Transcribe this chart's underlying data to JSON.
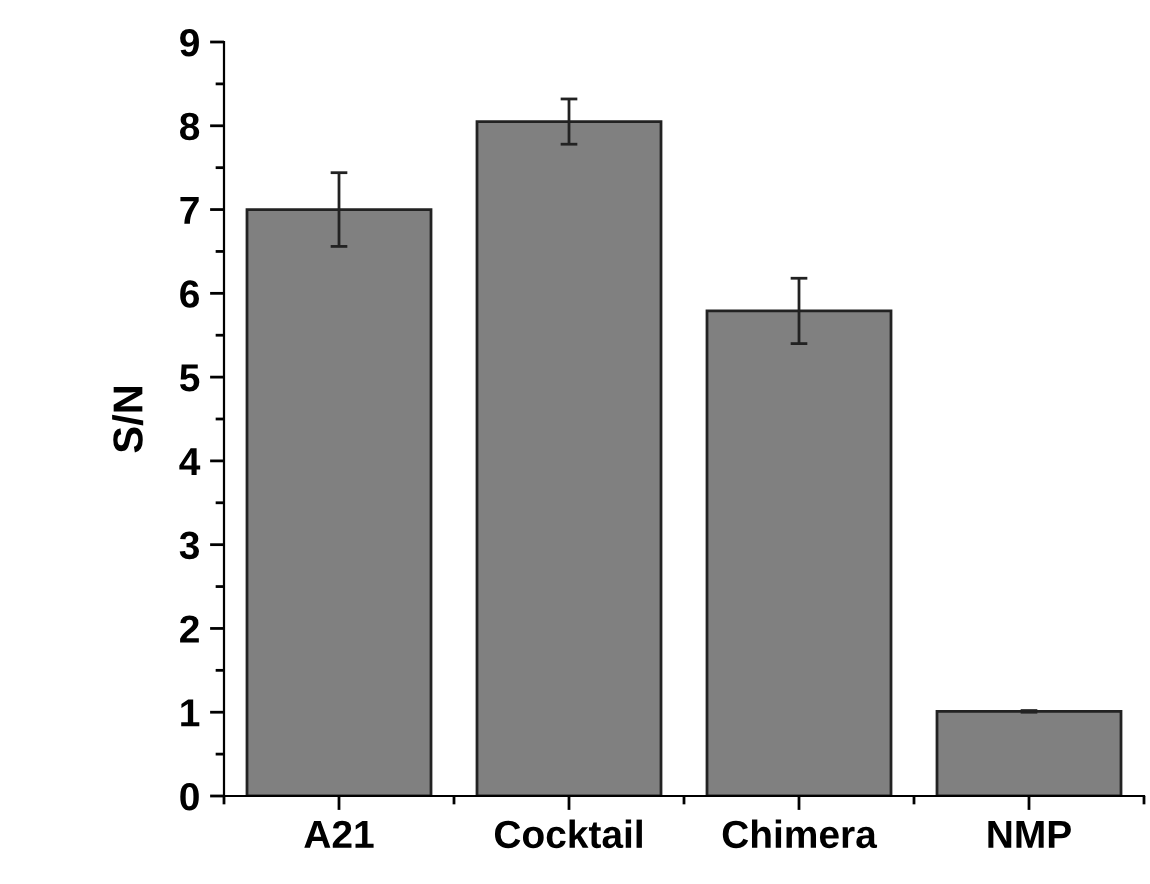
{
  "chart_data": {
    "type": "bar",
    "ylabel": "S/N",
    "categories": [
      "A21",
      "Cocktail",
      "Chimera",
      "NMP"
    ],
    "values": [
      7.0,
      8.05,
      5.79,
      1.01
    ],
    "errors": [
      0.44,
      0.27,
      0.39,
      0.01
    ],
    "color": "#808080",
    "ylim": [
      0,
      9
    ],
    "yticks": [
      0,
      1,
      2,
      3,
      4,
      5,
      6,
      7,
      8,
      9
    ],
    "grid": false
  }
}
